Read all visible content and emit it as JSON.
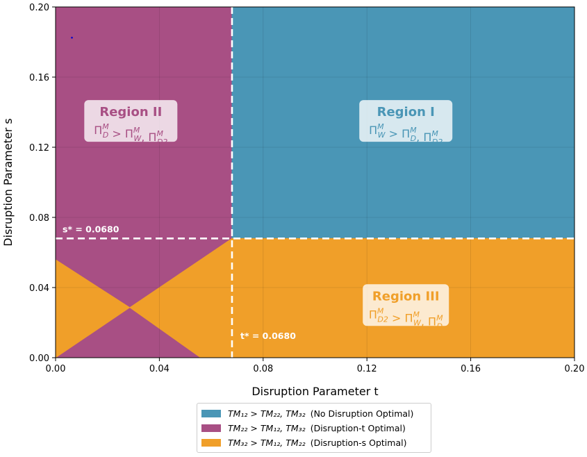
{
  "chart_data": {
    "type": "heatmap",
    "xlabel": "Disruption Parameter  t",
    "ylabel": "Disruption Parameter  s",
    "xlim": [
      0,
      0.2
    ],
    "ylim": [
      0,
      0.2
    ],
    "xticks": [
      "0.00",
      "0.04",
      "0.08",
      "0.12",
      "0.16",
      "0.20"
    ],
    "yticks": [
      "0.00",
      "0.04",
      "0.08",
      "0.12",
      "0.16",
      "0.20"
    ],
    "grid": true,
    "t_star": 0.068,
    "s_star": 0.068,
    "t_star_label": "t* = 0.0680",
    "s_star_label": "s* = 0.0680",
    "colors": {
      "no_disruption": "#4a96b6",
      "disruption_t": "#a84f84",
      "disruption_s": "#f09f29"
    },
    "regions": [
      {
        "key": "disruption_t",
        "color": "#a84f84",
        "polygons": [
          [
            [
              0,
              0.2
            ],
            [
              0.068,
              0.2
            ],
            [
              0.068,
              0.068
            ],
            [
              0.0286,
              0.0286
            ],
            [
              0,
              0.0559
            ]
          ],
          [
            [
              0.0286,
              0.0286
            ],
            [
              0.0559,
              0
            ],
            [
              0,
              0
            ]
          ]
        ]
      },
      {
        "key": "no_disruption",
        "color": "#4a96b6",
        "polygons": [
          [
            [
              0.068,
              0.2
            ],
            [
              0.2,
              0.2
            ],
            [
              0.2,
              0.068
            ],
            [
              0.068,
              0.068
            ]
          ]
        ]
      },
      {
        "key": "disruption_s",
        "color": "#f09f29",
        "polygons": [
          [
            [
              0.068,
              0.068
            ],
            [
              0.2,
              0.068
            ],
            [
              0.2,
              0
            ],
            [
              0.0559,
              0
            ],
            [
              0.0286,
              0.0286
            ]
          ],
          [
            [
              0,
              0.0559
            ],
            [
              0.0286,
              0.0286
            ],
            [
              0,
              0
            ]
          ]
        ]
      }
    ],
    "annotations": [
      {
        "name": "region-i",
        "title": "Region I",
        "at": [
          0.135,
          0.135
        ],
        "color": "#4a96b6",
        "sub": "W",
        "others": [
          "D",
          "D2"
        ]
      },
      {
        "name": "region-ii",
        "title": "Region II",
        "at": [
          0.029,
          0.135
        ],
        "color": "#a84f84",
        "sub": "D",
        "others": [
          "W",
          "D2"
        ]
      },
      {
        "name": "region-iii",
        "title": "Region III",
        "at": [
          0.135,
          0.03
        ],
        "color": "#f09f29",
        "sub": "D2",
        "others": [
          "W",
          "D"
        ]
      }
    ],
    "marker": {
      "x": 0.0063,
      "y": 0.1825,
      "color": "#0000cc"
    },
    "legend": {
      "placement": "below",
      "entries": [
        {
          "key": "no_disruption",
          "condition": "TM₁₂ > TM₂₂, TM₃₂",
          "note": "(No Disruption Optimal)"
        },
        {
          "key": "disruption_t",
          "condition": "TM₂₂ > TM₁₂, TM₃₂",
          "note": "(Disruption-t Optimal)"
        },
        {
          "key": "disruption_s",
          "condition": "TM₃₂ > TM₁₂, TM₂₂",
          "note": "(Disruption-s Optimal)"
        }
      ]
    }
  }
}
